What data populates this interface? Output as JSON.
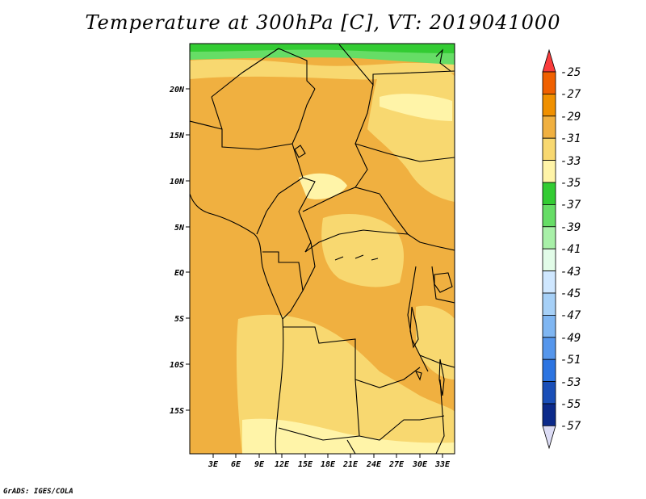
{
  "title": "Temperature at 300hPa [C], VT: 2019041000",
  "credit": "GrADS: IGES/COLA",
  "lat_ticks": [
    "20N",
    "15N",
    "10N",
    "5N",
    "EQ",
    "5S",
    "10S",
    "15S"
  ],
  "lon_ticks": [
    "3E",
    "6E",
    "9E",
    "12E",
    "15E",
    "18E",
    "21E",
    "24E",
    "27E",
    "30E",
    "33E"
  ],
  "colorbar": {
    "labels": [
      "-25",
      "-27",
      "-29",
      "-31",
      "-33",
      "-35",
      "-37",
      "-39",
      "-41",
      "-43",
      "-45",
      "-47",
      "-49",
      "-51",
      "-53",
      "-55",
      "-57"
    ],
    "colors": [
      "#fa3c3c",
      "#f06000",
      "#f09000",
      "#f0b040",
      "#f8d870",
      "#fff4a8",
      "#33cc33",
      "#66dd66",
      "#a8f0a8",
      "#e2fce8",
      "#cfe7ff",
      "#a6d0f7",
      "#7fb6f2",
      "#5596ec",
      "#2c74e1",
      "#1a4fb8",
      "#0c2a8a",
      "#000c60",
      "#dcdcf5"
    ]
  },
  "map": {
    "lon_range": [
      0,
      34.5
    ],
    "lat_range": [
      -20,
      24.5
    ],
    "field_colors": {
      "dominant": "#f0b040",
      "lighter": "#f8d870",
      "lightest": "#fff4a8",
      "north_band": "#33cc33",
      "north_band_light": "#66dd66"
    }
  }
}
